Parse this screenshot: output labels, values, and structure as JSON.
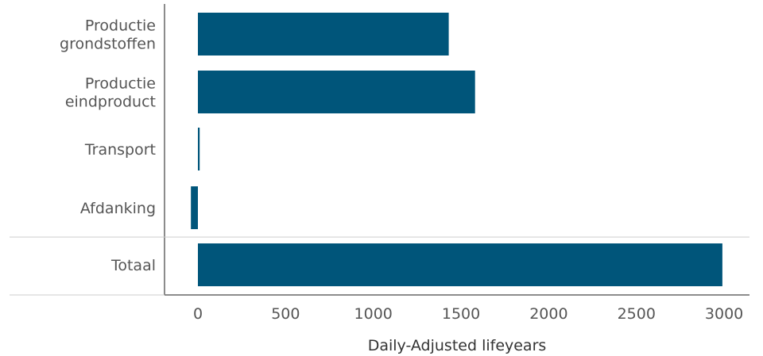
{
  "chart_data": {
    "type": "bar",
    "orientation": "horizontal",
    "categories": [
      [
        "Productie",
        "grondstoffen"
      ],
      [
        "Productie",
        "eindproduct"
      ],
      [
        "Transport"
      ],
      [
        "Afdanking"
      ],
      [
        "Totaal"
      ]
    ],
    "values": [
      1430,
      1580,
      10,
      -40,
      2990
    ],
    "xlabel": "Daily-Adjusted lifeyears",
    "ylabel": "",
    "xlim": [
      -100,
      3050
    ],
    "xticks": [
      0,
      500,
      1000,
      1500,
      2000,
      2500,
      3000
    ],
    "xtick_labels": [
      "0",
      "500",
      "1000",
      "1500",
      "2000",
      "2500",
      "3000"
    ],
    "separator_before_category": "Totaal",
    "grid": false,
    "bar_color": "#00557a",
    "axis_color": "#666666",
    "separator_color": "#cccccc"
  }
}
